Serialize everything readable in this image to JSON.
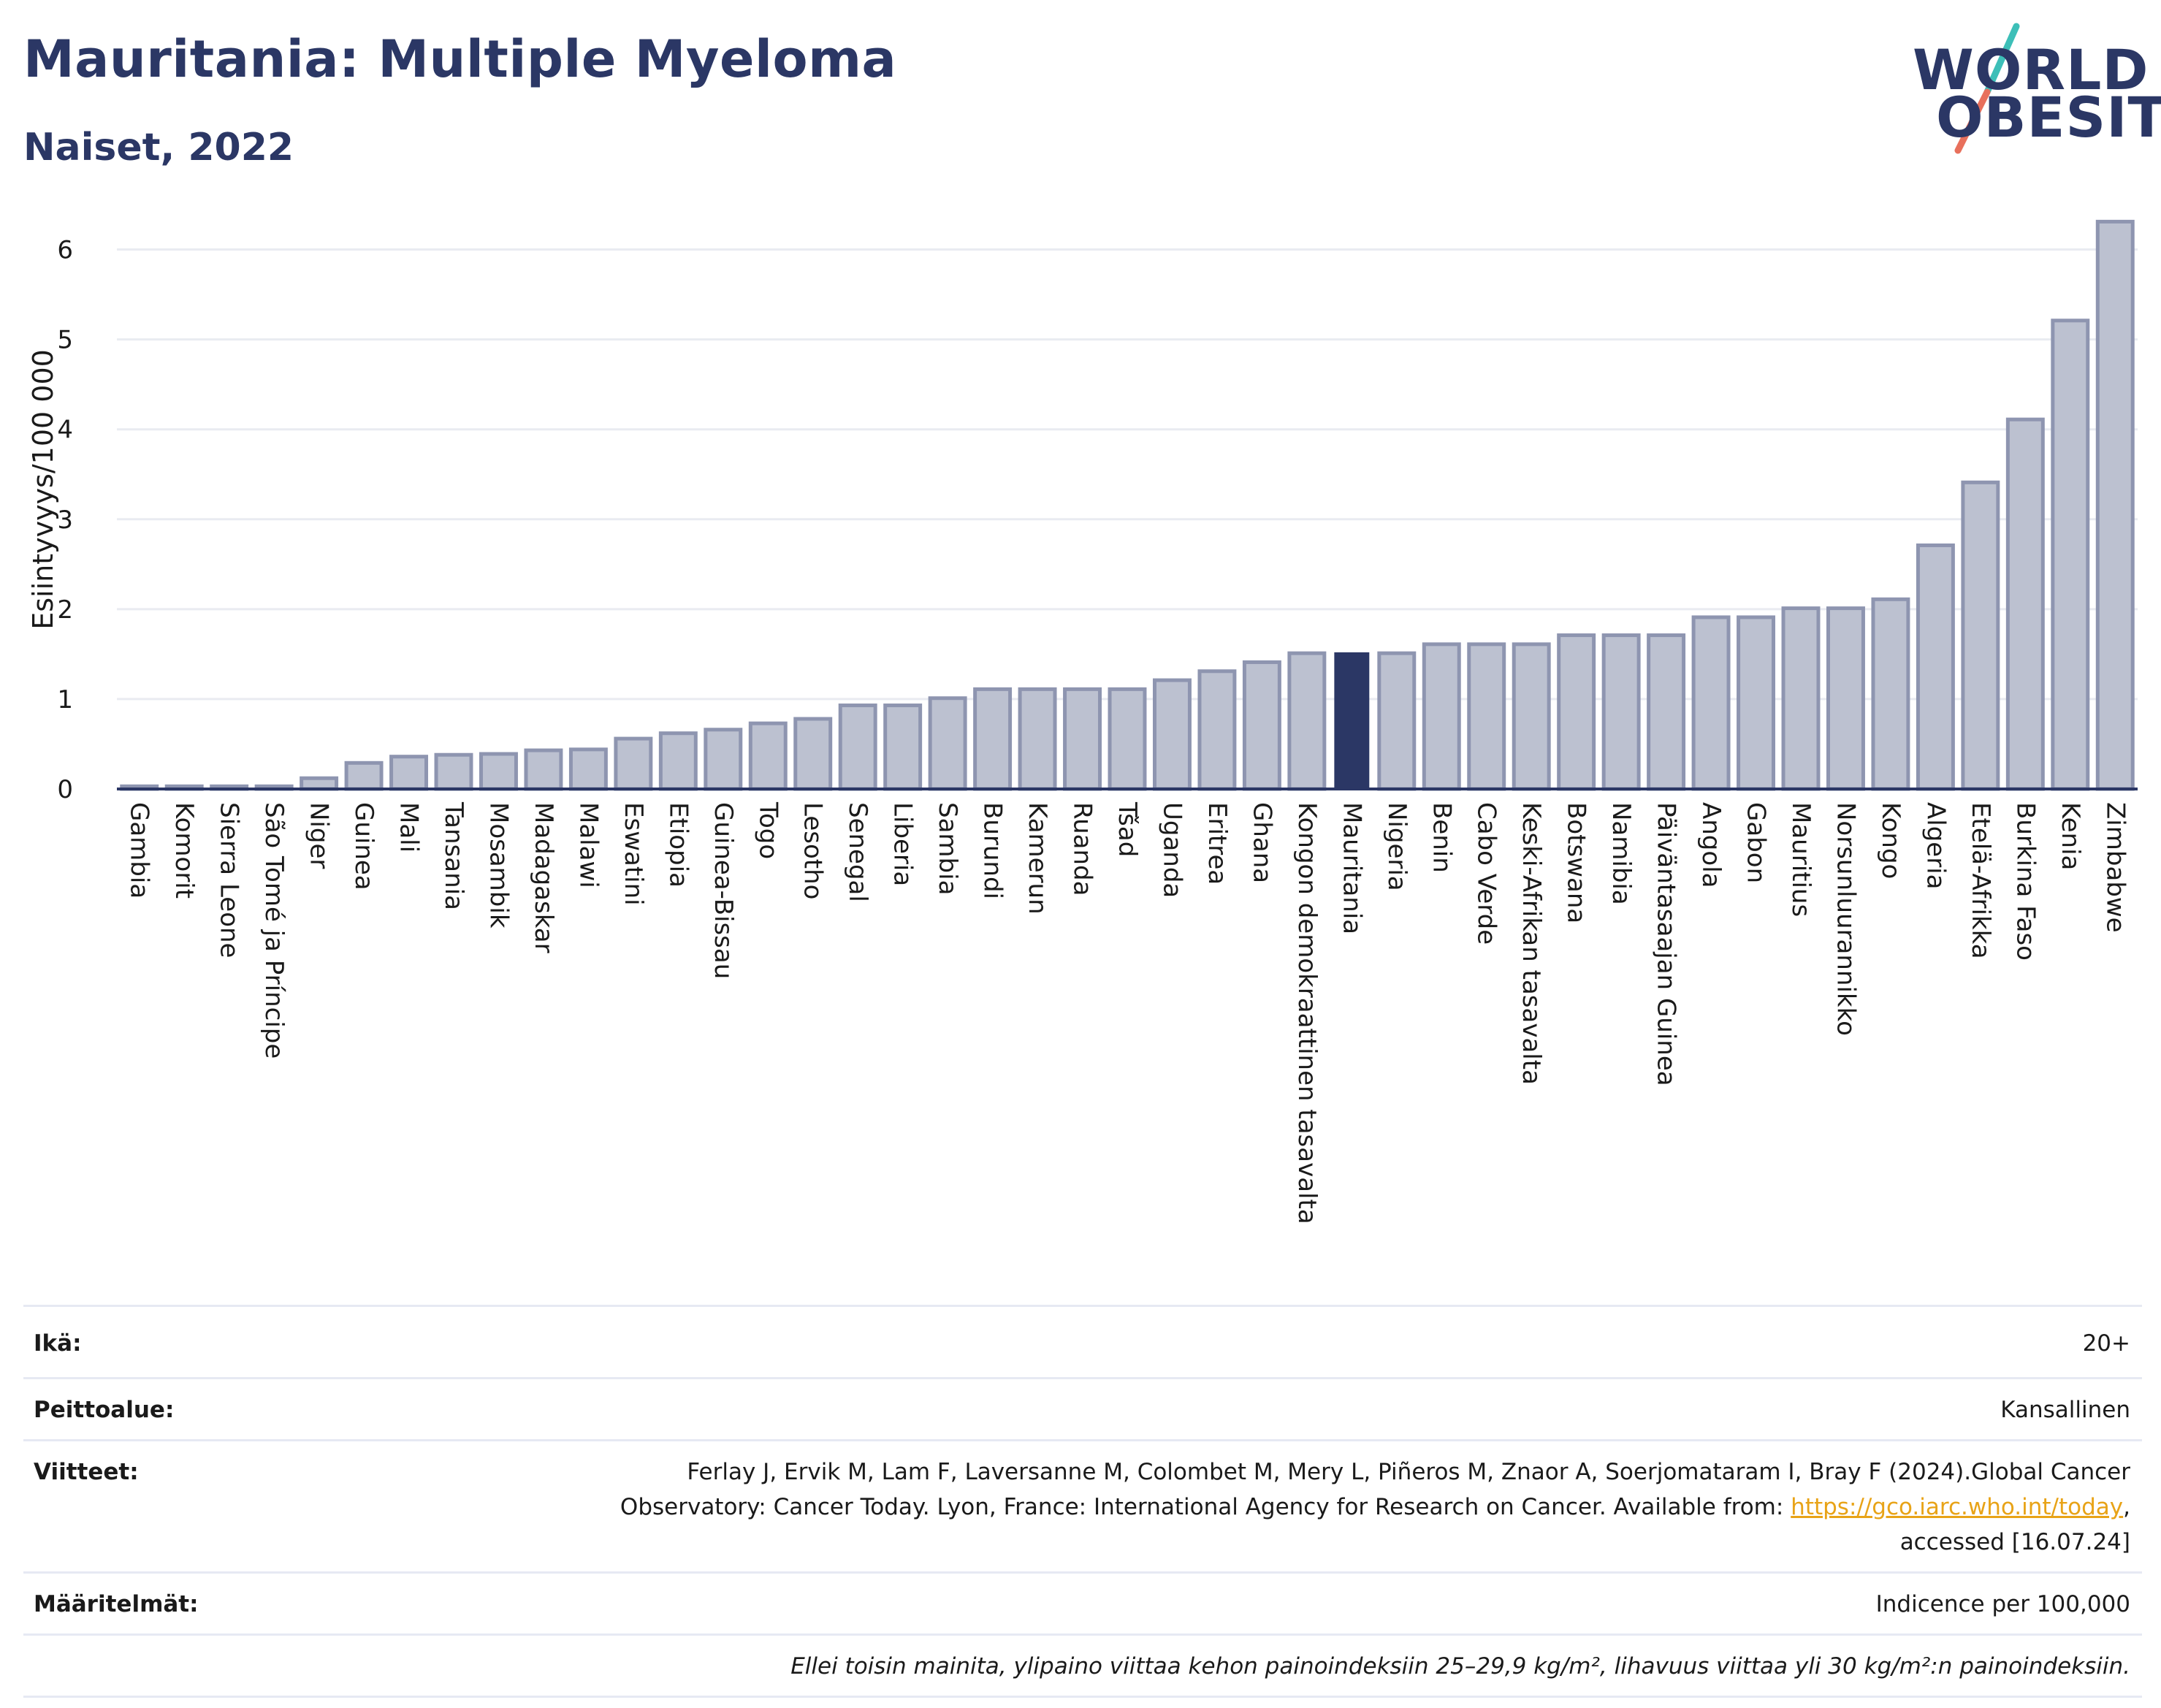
{
  "header": {
    "title": "Mauritania: Multiple Myeloma",
    "subtitle": "Naiset, 2022"
  },
  "logo": {
    "line1": "WORLD",
    "line2": "OBESITY",
    "colors": {
      "text": "#2b3765",
      "slash_top": "#3dbfb8",
      "slash_bottom": "#e8705c"
    }
  },
  "colors": {
    "bar": "#bcc1d0",
    "bar_stroke": "#8e95b0",
    "highlight": "#2b3765",
    "grid": "#e9ebf1",
    "axis": "#2b3765"
  },
  "chart_data": {
    "type": "bar",
    "ylabel": "Esiintyvyys/100 000",
    "ylim": [
      0,
      6.5
    ],
    "yticks": [
      0,
      1,
      2,
      3,
      4,
      5,
      6
    ],
    "grid": true,
    "highlight": "Mauritania",
    "categories": [
      "Gambia",
      "Komorit",
      "Sierra Leone",
      "São Tomé ja Príncipe",
      "Niger",
      "Guinea",
      "Mali",
      "Tansania",
      "Mosambik",
      "Madagaskar",
      "Malawi",
      "Eswatini",
      "Etiopia",
      "Guinea-Bissau",
      "Togo",
      "Lesotho",
      "Senegal",
      "Liberia",
      "Sambia",
      "Burundi",
      "Kamerun",
      "Ruanda",
      "Tšad",
      "Uganda",
      "Eritrea",
      "Ghana",
      "Kongon demokraattinen tasavalta",
      "Mauritania",
      "Nigeria",
      "Benin",
      "Cabo Verde",
      "Keski-Afrikan tasavalta",
      "Botswana",
      "Namibia",
      "Päiväntasaajan Guinea",
      "Angola",
      "Gabon",
      "Mauritius",
      "Norsunluurannikko",
      "Kongo",
      "Algeria",
      "Etelä-Afrikka",
      "Burkina Faso",
      "Kenia",
      "Zimbabwe"
    ],
    "values": [
      0.03,
      0.03,
      0.03,
      0.03,
      0.12,
      0.29,
      0.36,
      0.38,
      0.39,
      0.43,
      0.44,
      0.56,
      0.62,
      0.66,
      0.73,
      0.78,
      0.93,
      0.93,
      1.01,
      1.11,
      1.11,
      1.11,
      1.11,
      1.21,
      1.31,
      1.41,
      1.51,
      1.52,
      1.51,
      1.61,
      1.61,
      1.61,
      1.71,
      1.71,
      1.71,
      1.91,
      1.91,
      2.01,
      2.01,
      2.11,
      2.71,
      3.41,
      4.11,
      5.21,
      6.31
    ]
  },
  "meta": {
    "age_label": "Ikä:",
    "age_value": "20+",
    "coverage_label": "Peittoalue:",
    "coverage_value": "Kansallinen",
    "refs_label": "Viitteet:",
    "refs_line1": "Ferlay J, Ervik M, Lam F, Laversanne M, Colombet M, Mery L, Piñeros M, Znaor A, Soerjomataram I, Bray F (2024).Global Cancer",
    "refs_line2_pre": "Observatory: Cancer Today. Lyon, France: International Agency for Research on Cancer. Available from: ",
    "refs_link": "https://gco.iarc.who.int/today",
    "refs_line2_post": ",",
    "refs_line3": "accessed [16.07.24]",
    "defs_label": "Määritelmät:",
    "defs_value": "Indicence per 100,000",
    "note": "Ellei toisin mainita, ylipaino viittaa kehon painoindeksiin 25–29,9 kg/m², lihavuus viittaa yli 30 kg/m²:n painoindeksiin."
  }
}
